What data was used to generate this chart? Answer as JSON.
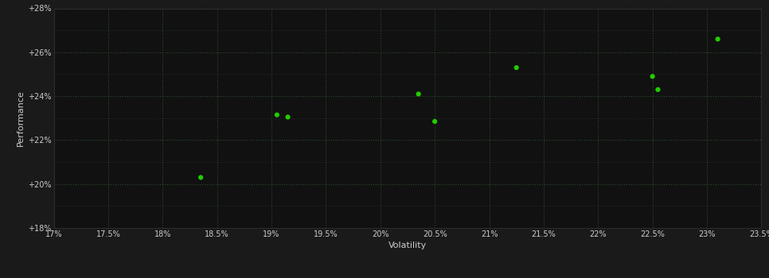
{
  "points_x": [
    18.35,
    19.05,
    19.15,
    20.35,
    20.5,
    21.25,
    22.5,
    22.55,
    23.1
  ],
  "points_y": [
    20.3,
    23.15,
    23.05,
    24.1,
    22.85,
    25.3,
    24.9,
    24.3,
    26.6
  ],
  "xlabel": "Volatility",
  "ylabel": "Performance",
  "background_color": "#1a1a1a",
  "plot_bg_color": "#111111",
  "grid_color": "#2d4a2d",
  "point_color": "#22cc00",
  "point_size": 20,
  "xlim": [
    17.0,
    23.5
  ],
  "ylim": [
    18.0,
    28.0
  ],
  "xticks": [
    17.0,
    17.5,
    18.0,
    18.5,
    19.0,
    19.5,
    20.0,
    20.5,
    21.0,
    21.5,
    22.0,
    22.5,
    23.0,
    23.5
  ],
  "yticks": [
    18.0,
    20.0,
    22.0,
    24.0,
    26.0,
    28.0
  ],
  "xlabel_fontsize": 8,
  "ylabel_fontsize": 8,
  "tick_fontsize": 7,
  "tick_color": "#cccccc",
  "label_color": "#cccccc"
}
